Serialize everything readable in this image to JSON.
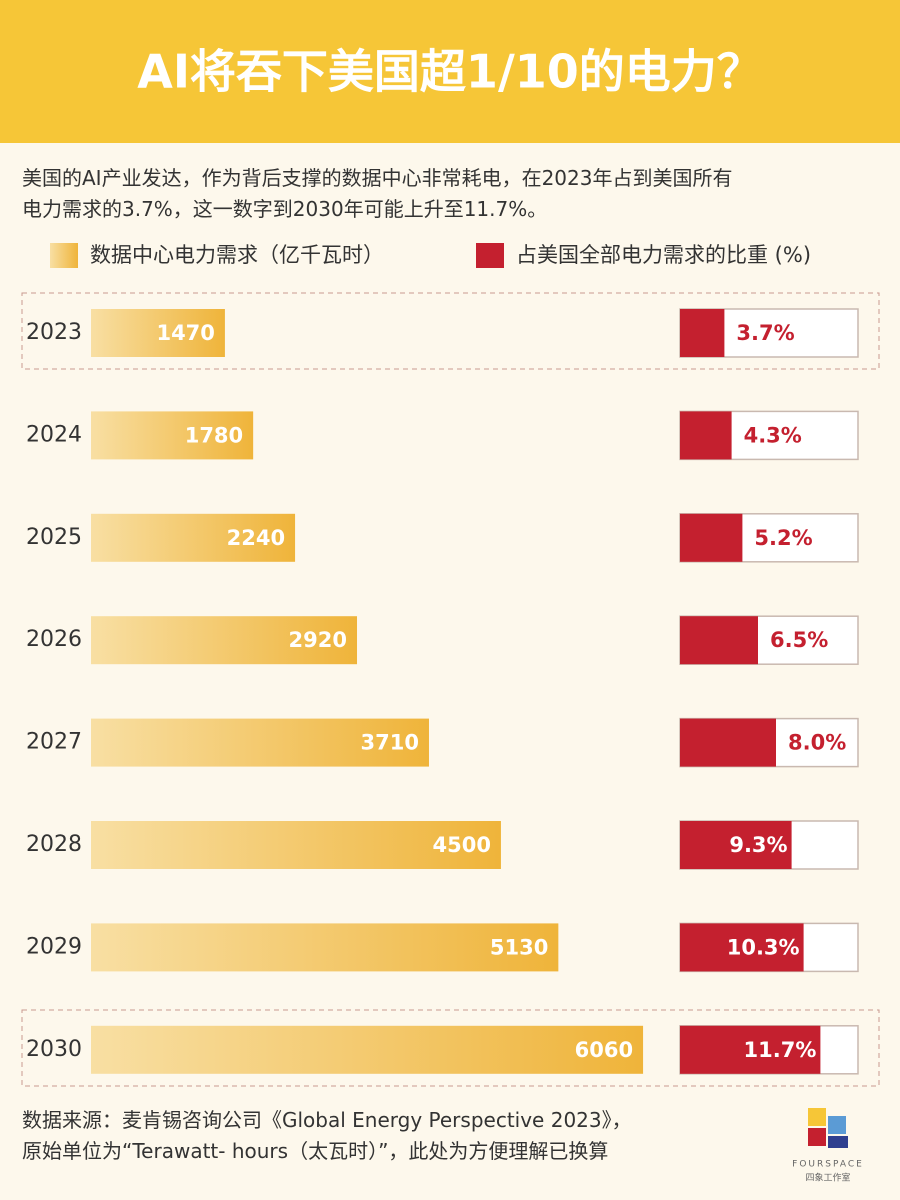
{
  "chart_data": {
    "type": "bar",
    "title": "AI将吞下美国超1/10的电力？",
    "subtitle": [
      "美国的AI产业发达，作为背后支撑的数据中心非常耗电，在2023年占到美国所有",
      "电力需求的3.7%，这一数字到2030年可能上升至11.7%。"
    ],
    "categories": [
      "2023",
      "2024",
      "2025",
      "2026",
      "2027",
      "2028",
      "2029",
      "2030"
    ],
    "series": [
      {
        "name": "数据中心电力需求（亿千瓦时）",
        "color": "#efb43a",
        "values": [
          1470,
          1780,
          2240,
          2920,
          3710,
          4500,
          5130,
          6060
        ]
      },
      {
        "name": "占美国全部电力需求的比重 (%)",
        "color": "#c4202f",
        "values": [
          3.7,
          4.3,
          5.2,
          6.5,
          8.0,
          9.3,
          10.3,
          11.7
        ],
        "value_labels": [
          "3.7%",
          "4.3%",
          "5.2%",
          "6.5%",
          "8.0%",
          "9.3%",
          "10.3%",
          "11.7%"
        ]
      }
    ],
    "source": [
      "数据来源：麦肯锡咨询公司《Global Energy Perspective 2023》，",
      "原始单位为“Terawatt- hours（太瓦时）”，此处为方便理解已换算"
    ],
    "logo": {
      "name": "FOURSPACE",
      "subname": "四象工作室"
    }
  }
}
